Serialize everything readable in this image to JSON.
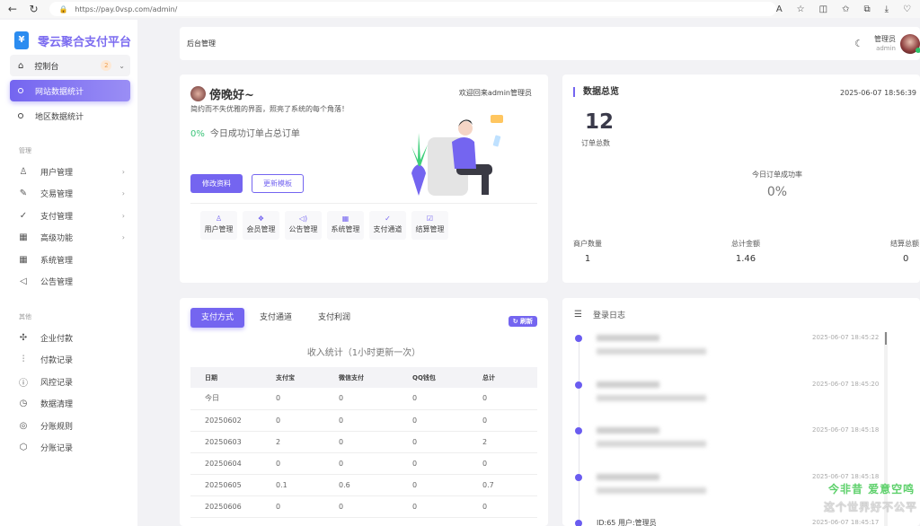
{
  "browser": {
    "url": "https://pay.0vsp.com/admin/"
  },
  "sidebar": {
    "brand": "零云聚合支付平台",
    "dashboard": {
      "label": "控制台",
      "badge": "2"
    },
    "dashboard_subs": [
      {
        "label": "网站数据统计",
        "active": true
      },
      {
        "label": "地区数据统计",
        "active": false
      }
    ],
    "section_manage": "管理",
    "manage_items": [
      {
        "label": "用户管理",
        "icon": "users-icon",
        "arrow": true
      },
      {
        "label": "交易管理",
        "icon": "edit-icon",
        "arrow": true
      },
      {
        "label": "支付管理",
        "icon": "check-circle-icon",
        "arrow": true
      },
      {
        "label": "高级功能",
        "icon": "grid-icon",
        "arrow": true
      },
      {
        "label": "系统管理",
        "icon": "grid-icon",
        "arrow": false
      },
      {
        "label": "公告管理",
        "icon": "speaker-icon",
        "arrow": false
      }
    ],
    "section_other": "其他",
    "other_items": [
      {
        "label": "企业付款",
        "icon": "slack-icon"
      },
      {
        "label": "付款记录",
        "icon": "sliders-icon"
      },
      {
        "label": "风控记录",
        "icon": "alert-circle-icon"
      },
      {
        "label": "数据清理",
        "icon": "clock-icon"
      },
      {
        "label": "分账规则",
        "icon": "chrome-icon"
      },
      {
        "label": "分账记录",
        "icon": "codesandbox-icon"
      }
    ]
  },
  "header": {
    "title": "后台管理",
    "user_name": "管理员",
    "user_role": "admin"
  },
  "welcome": {
    "greeting": "傍晚好~",
    "welcome_back": "欢迎回来admin管理员",
    "slogan": "简约而不失优雅的界面，照亮了系统的每个角落！",
    "rate_value": "0%",
    "rate_label": "今日成功订单占总订单",
    "edit_profile": "修改资料",
    "update_template": "更新模板",
    "quick": [
      {
        "label": "用户管理",
        "icon": "user-icon",
        "glyph": "♙"
      },
      {
        "label": "会员管理",
        "icon": "layers-icon",
        "glyph": "❖"
      },
      {
        "label": "公告管理",
        "icon": "speaker-icon",
        "glyph": "◁)"
      },
      {
        "label": "系统管理",
        "icon": "grid-icon",
        "glyph": "▦"
      },
      {
        "label": "支付通道",
        "icon": "check-circle-icon",
        "glyph": "✓"
      },
      {
        "label": "结算管理",
        "icon": "check-square-icon",
        "glyph": "☑"
      }
    ]
  },
  "overview": {
    "title": "数据总览",
    "time": "2025-06-07 18:56:39",
    "orders_total": "12",
    "orders_total_label": "订单总数",
    "success_rate_label": "今日订单成功率",
    "success_rate": "0%",
    "merchants_label": "商户数量",
    "merchants": "1",
    "amount_label": "总计金额",
    "amount": "1.46",
    "settle_label": "结算总额",
    "settle": "0"
  },
  "income": {
    "tabs": [
      "支付方式",
      "支付通道",
      "支付利润"
    ],
    "refresh": "刷新",
    "caption": "收入统计（1小时更新一次）",
    "columns": [
      "日期",
      "支付宝",
      "微信支付",
      "QQ钱包",
      "总计"
    ],
    "rows": [
      [
        "今日",
        "0",
        "0",
        "0",
        "0"
      ],
      [
        "20250602",
        "0",
        "0",
        "0",
        "0"
      ],
      [
        "20250603",
        "2",
        "0",
        "0",
        "2"
      ],
      [
        "20250604",
        "0",
        "0",
        "0",
        "0"
      ],
      [
        "20250605",
        "0.1",
        "0.6",
        "0",
        "0.7"
      ],
      [
        "20250606",
        "0",
        "0",
        "0",
        "0"
      ]
    ]
  },
  "login_log": {
    "title": "登录日志",
    "entries": [
      {
        "time": "2025-06-07 18:45:22"
      },
      {
        "time": "2025-06-07 18:45:20"
      },
      {
        "time": "2025-06-07 18:45:18"
      },
      {
        "time": "2025-06-07 18:45:18"
      },
      {
        "time": "2025-06-07 18:45:17",
        "text": "ID:65 用户:管理员"
      }
    ]
  },
  "overlay": {
    "line1": "今非昔 爱意空鸣",
    "line2": "这个世界好不公平"
  },
  "colors": {
    "accent": "#7465f0",
    "success": "#3cc47a",
    "badge": "#f0a050"
  }
}
